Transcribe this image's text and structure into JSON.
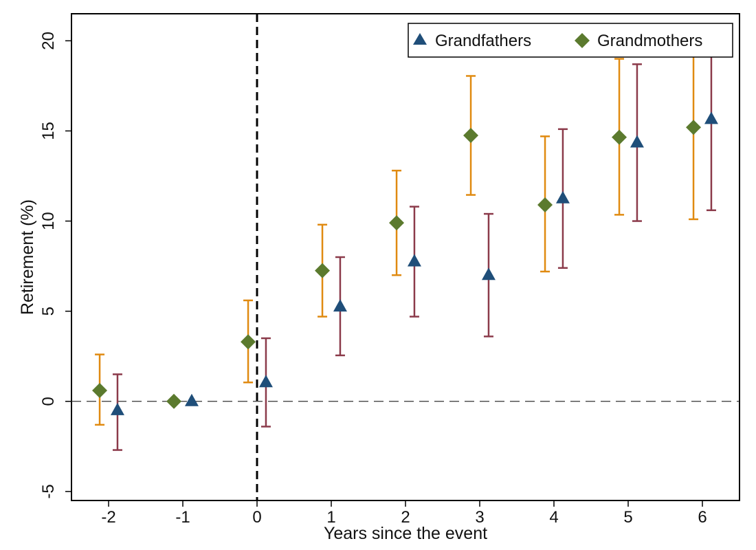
{
  "chart_data": {
    "type": "scatter",
    "title": "",
    "xlabel": "Years since the event",
    "ylabel": "Retirement (%)",
    "xlim": [
      -2.5,
      6.5
    ],
    "ylim": [
      -5.5,
      21.5
    ],
    "x_ticks": [
      {
        "value": -2,
        "label": "-2"
      },
      {
        "value": -1,
        "label": "-1"
      },
      {
        "value": 0,
        "label": "0"
      },
      {
        "value": 1,
        "label": "1"
      },
      {
        "value": 2,
        "label": "2"
      },
      {
        "value": 3,
        "label": "3"
      },
      {
        "value": 4,
        "label": "4"
      },
      {
        "value": 5,
        "label": "5"
      },
      {
        "value": 6,
        "label": "6"
      }
    ],
    "y_ticks": [
      {
        "value": -5,
        "label": "-5"
      },
      {
        "value": 0,
        "label": "0"
      },
      {
        "value": 5,
        "label": "5"
      },
      {
        "value": 10,
        "label": "10"
      },
      {
        "value": 15,
        "label": "15"
      },
      {
        "value": 20,
        "label": "20"
      }
    ],
    "event_line_x": 0,
    "reference_line_y": 0,
    "legend_position": "top-right",
    "grid": false,
    "series": [
      {
        "name": "Grandfathers",
        "marker": "triangle",
        "marker_color": "#1f4e79",
        "ci_color": "#8b3a4a",
        "x_offset": 0.12,
        "points": [
          {
            "x": -2,
            "y": -0.5,
            "lo": -2.7,
            "hi": 1.5
          },
          {
            "x": -1,
            "y": 0.0,
            "lo": null,
            "hi": null
          },
          {
            "x": 0,
            "y": 1.05,
            "lo": -1.4,
            "hi": 3.5
          },
          {
            "x": 1,
            "y": 5.25,
            "lo": 2.55,
            "hi": 8.0
          },
          {
            "x": 2,
            "y": 7.75,
            "lo": 4.7,
            "hi": 10.8
          },
          {
            "x": 3,
            "y": 7.0,
            "lo": 3.6,
            "hi": 10.4
          },
          {
            "x": 4,
            "y": 11.25,
            "lo": 7.4,
            "hi": 15.1
          },
          {
            "x": 5,
            "y": 14.35,
            "lo": 10.0,
            "hi": 18.7
          },
          {
            "x": 6,
            "y": 15.65,
            "lo": 10.6,
            "hi": 20.6
          }
        ]
      },
      {
        "name": "Grandmothers",
        "marker": "diamond",
        "marker_color": "#5b7a2e",
        "ci_color": "#e08a10",
        "x_offset": -0.12,
        "points": [
          {
            "x": -2,
            "y": 0.6,
            "lo": -1.3,
            "hi": 2.6
          },
          {
            "x": -1,
            "y": 0.0,
            "lo": null,
            "hi": null
          },
          {
            "x": 0,
            "y": 3.3,
            "lo": 1.05,
            "hi": 5.6
          },
          {
            "x": 1,
            "y": 7.25,
            "lo": 4.7,
            "hi": 9.8
          },
          {
            "x": 2,
            "y": 9.9,
            "lo": 7.0,
            "hi": 12.8
          },
          {
            "x": 3,
            "y": 14.75,
            "lo": 11.45,
            "hi": 18.05
          },
          {
            "x": 4,
            "y": 10.9,
            "lo": 7.2,
            "hi": 14.7
          },
          {
            "x": 5,
            "y": 14.65,
            "lo": 10.35,
            "hi": 19.0
          },
          {
            "x": 6,
            "y": 15.2,
            "lo": 10.1,
            "hi": 20.4
          }
        ]
      }
    ]
  }
}
